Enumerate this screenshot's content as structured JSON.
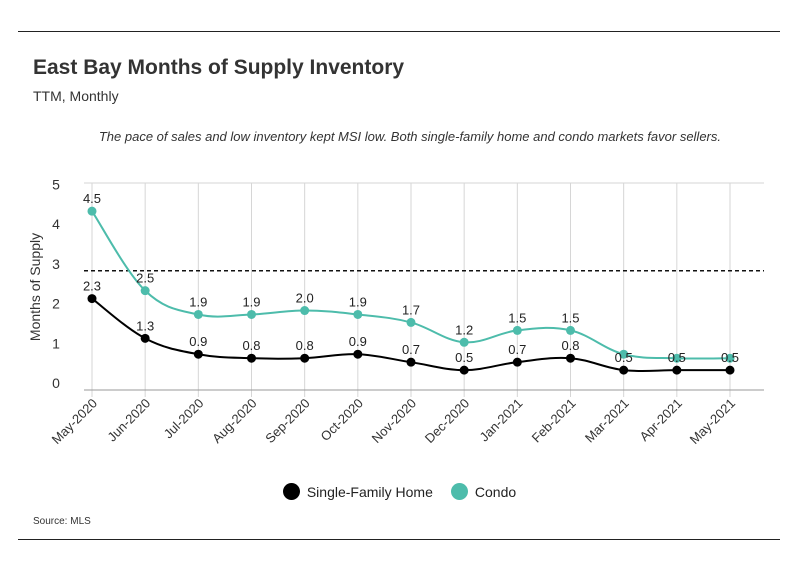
{
  "header": {
    "title": "East Bay Months of Supply Inventory",
    "subtitle": "TTM, Monthly",
    "note": "The pace of sales and low inventory kept MSI low. Both single-family home and condo markets favor sellers."
  },
  "footer": {
    "source": "Source:  MLS"
  },
  "chart_data": {
    "type": "line",
    "title": "East Bay Months of Supply Inventory",
    "subtitle": "TTM, Monthly",
    "ylabel": "Months of Supply",
    "xlabel": "",
    "ylim": [
      0,
      5
    ],
    "yticks": [
      "0",
      "1",
      "2",
      "3",
      "4",
      "5"
    ],
    "reference_line": 3,
    "grid": "vertical",
    "legend_position": "bottom",
    "categories": [
      "May-2020",
      "Jun-2020",
      "Jul-2020",
      "Aug-2020",
      "Sep-2020",
      "Oct-2020",
      "Nov-2020",
      "Dec-2020",
      "Jan-2021",
      "Feb-2021",
      "Mar-2021",
      "Apr-2021",
      "May-2021"
    ],
    "series": [
      {
        "name": "Single-Family Home",
        "color": "#000000",
        "values": [
          2.3,
          1.3,
          0.9,
          0.8,
          0.8,
          0.9,
          0.7,
          0.5,
          0.7,
          0.8,
          0.5,
          0.5,
          0.5
        ],
        "labels": [
          "2.3",
          "1.3",
          "0.9",
          "0.8",
          "0.8",
          "0.9",
          "0.7",
          "0.5",
          "0.7",
          "0.8",
          "0.5",
          "0.5",
          "0.5"
        ]
      },
      {
        "name": "Condo",
        "color": "#4dbcab",
        "values": [
          4.5,
          2.5,
          1.9,
          1.9,
          2.0,
          1.9,
          1.7,
          1.2,
          1.5,
          1.5,
          0.9,
          0.8,
          0.8
        ],
        "labels": [
          "4.5",
          "2.5",
          "1.9",
          "1.9",
          "2.0",
          "1.9",
          "1.7",
          "1.2",
          "1.5",
          "1.5",
          "",
          "",
          ""
        ]
      }
    ]
  }
}
